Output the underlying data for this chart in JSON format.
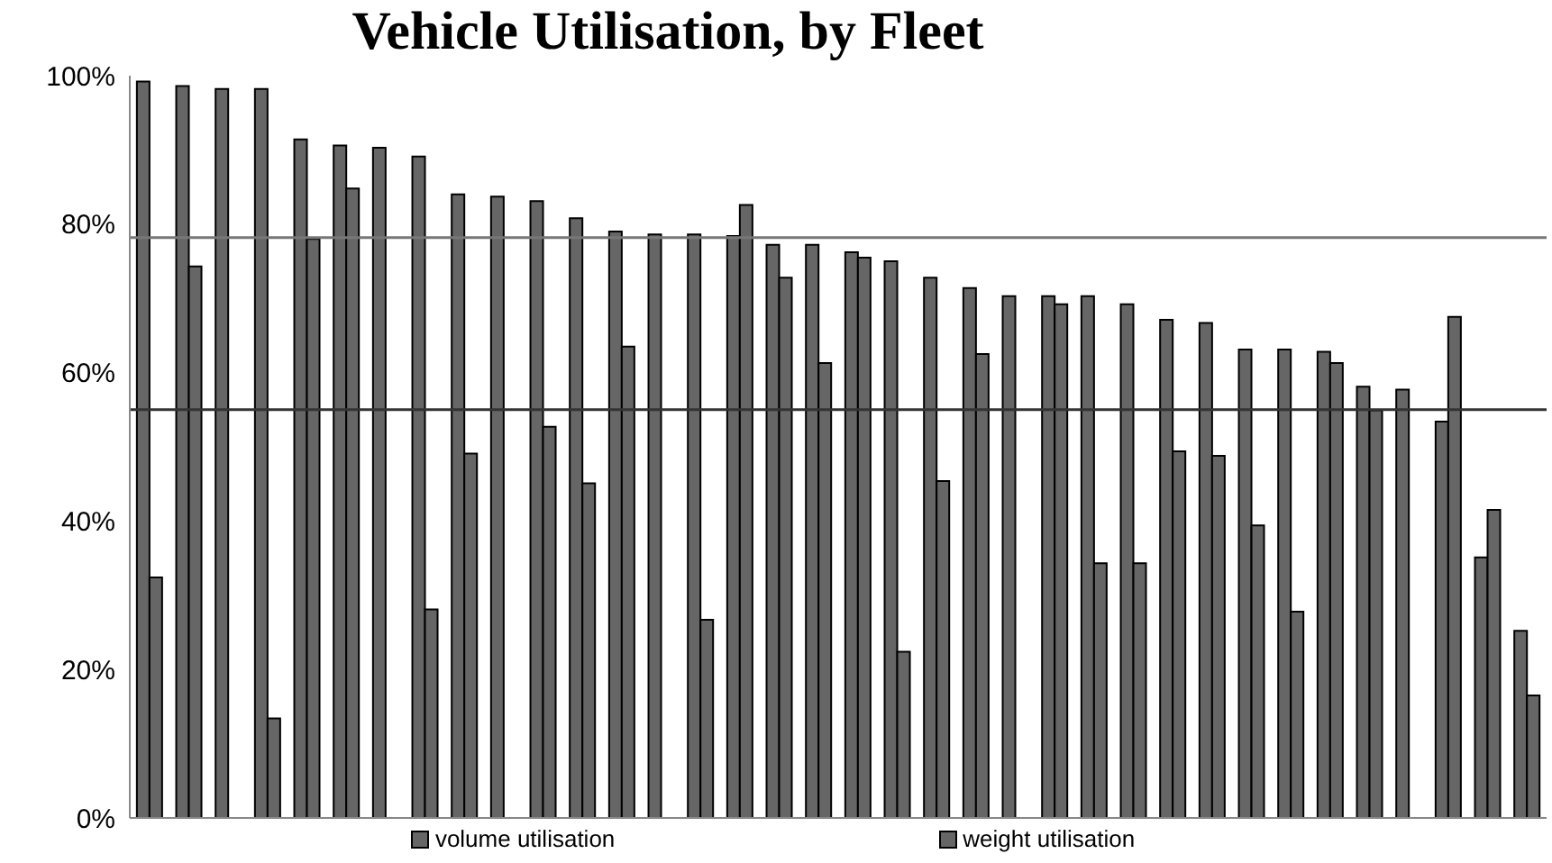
{
  "chart_data": {
    "type": "bar",
    "title": "Vehicle Utilisation, by Fleet",
    "categories": [
      null,
      null,
      null,
      null,
      null,
      null,
      null,
      null,
      null,
      null,
      null,
      null,
      null,
      null,
      null,
      null,
      null,
      null,
      null,
      null,
      null,
      null,
      null,
      null,
      null,
      null,
      null,
      null,
      null,
      null,
      null,
      null,
      null,
      null,
      null,
      null
    ],
    "series": [
      {
        "name": "volume utilisation",
        "color": "#666666",
        "values": [
          99.2,
          98.6,
          98.2,
          98.2,
          91.4,
          90.6,
          90.3,
          89.1,
          84.0,
          83.7,
          83.1,
          80.8,
          79.0,
          78.6,
          78.6,
          78.4,
          77.2,
          77.2,
          76.2,
          75.0,
          72.8,
          71.4,
          70.3,
          70.3,
          70.3,
          69.2,
          67.1,
          66.7,
          63.1,
          63.1,
          62.8,
          58.1,
          57.7,
          53.4,
          35.1,
          25.2
        ]
      },
      {
        "name": "weight utilisation",
        "color": "#666666",
        "values": [
          32.4,
          74.3,
          null,
          13.4,
          78.0,
          84.8,
          null,
          28.1,
          49.1,
          null,
          52.7,
          45.1,
          63.5,
          null,
          26.7,
          82.6,
          72.8,
          61.3,
          75.5,
          22.4,
          45.4,
          62.5,
          null,
          69.2,
          34.3,
          34.3,
          49.4,
          48.8,
          39.4,
          27.8,
          61.3,
          54.9,
          null,
          67.5,
          41.5,
          16.5
        ]
      }
    ],
    "ylim": [
      0,
      100
    ],
    "yticks": [
      {
        "value": 0,
        "label": "0%"
      },
      {
        "value": 20,
        "label": "20%"
      },
      {
        "value": 40,
        "label": "40%"
      },
      {
        "value": 60,
        "label": "60%"
      },
      {
        "value": 80,
        "label": "80%"
      },
      {
        "value": 100,
        "label": "100%"
      }
    ],
    "tick_labels": "y",
    "grid": false,
    "legend": "bottom",
    "ref_lines": [
      {
        "axis": "y",
        "value": 78.2,
        "color": "#777777"
      },
      {
        "axis": "y",
        "value": 55.0,
        "color": "#333333"
      }
    ]
  }
}
